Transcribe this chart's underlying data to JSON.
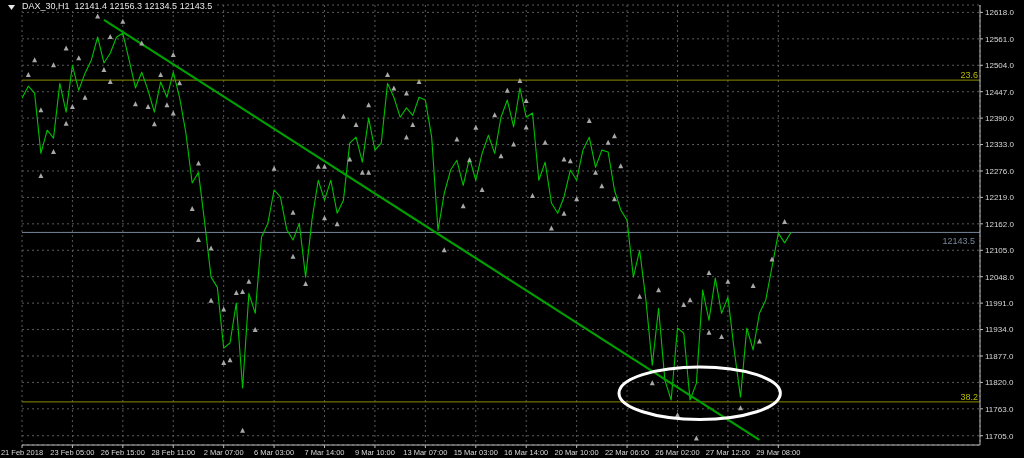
{
  "chart_data": {
    "type": "line",
    "title": "DAX_30,H1  12141.4 12156.3 12134.5 12143.5",
    "categories": [
      "21 Feb 2018",
      null,
      null,
      null,
      null,
      null,
      null,
      null,
      "23 Feb 05:00",
      null,
      null,
      null,
      null,
      null,
      null,
      null,
      "26 Feb 15:00",
      null,
      null,
      null,
      null,
      null,
      null,
      null,
      "28 Feb 11:00",
      null,
      null,
      null,
      null,
      null,
      null,
      null,
      "2 Mar 07:00",
      null,
      null,
      null,
      null,
      null,
      null,
      null,
      "6 Mar 03:00",
      null,
      null,
      null,
      null,
      null,
      null,
      null,
      "7 Mar 14:00",
      null,
      null,
      null,
      null,
      null,
      null,
      null,
      "9 Mar 10:00",
      null,
      null,
      null,
      null,
      null,
      null,
      null,
      "13 Mar 07:00",
      null,
      null,
      null,
      null,
      null,
      null,
      null,
      "15 Mar 03:00",
      null,
      null,
      null,
      null,
      null,
      null,
      null,
      "16 Mar 14:00",
      null,
      null,
      null,
      null,
      null,
      null,
      null,
      "20 Mar 10:00",
      null,
      null,
      null,
      null,
      null,
      null,
      null,
      "22 Mar 06:00",
      null,
      null,
      null,
      null,
      null,
      null,
      null,
      "26 Mar 02:00",
      null,
      null,
      null,
      null,
      null,
      null,
      null,
      "27 Mar 12:00",
      null,
      null,
      null,
      null,
      null,
      null,
      null,
      "29 Mar 08:00",
      null,
      null,
      null,
      null,
      null,
      null,
      null,
      null,
      null,
      null,
      null,
      null,
      null,
      null,
      null,
      null,
      null,
      null,
      null,
      null,
      null,
      null,
      null,
      null,
      null,
      null,
      null,
      null,
      null,
      null,
      null,
      null
    ],
    "series": [
      {
        "type": "line",
        "color": "#00c000",
        "values": [
          12433,
          12459,
          12444,
          12314,
          12364,
          12347,
          12465,
          12403,
          12504,
          12450,
          12487,
          12515,
          12565,
          12509,
          12530,
          12565,
          12573,
          12515,
          12455,
          12489,
          12450,
          12403,
          12468,
          12435,
          12489,
          12435,
          12358,
          12250,
          12273,
          12163,
          12047,
          12025,
          11894,
          11905,
          11991,
          11808,
          12012,
          11969,
          12133,
          12163,
          12235,
          12220,
          12150,
          12127,
          12163,
          12047,
          12170,
          12256,
          12213,
          12256,
          12185,
          12213,
          12336,
          12349,
          12295,
          12390,
          12321,
          12336,
          12465,
          12435,
          12392,
          12412,
          12396,
          12435,
          12429,
          12349,
          12148,
          12228,
          12278,
          12299,
          12245,
          12304,
          12256,
          12314,
          12353,
          12314,
          12392,
          12429,
          12371,
          12455,
          12392,
          12401,
          12256,
          12295,
          12207,
          12185,
          12220,
          12278,
          12256,
          12321,
          12349,
          12284,
          12321,
          12317,
          12235,
          12192,
          12170,
          12047,
          12105,
          11997,
          11857,
          11980,
          11825,
          11782,
          11937,
          11926,
          11782,
          11818,
          12019,
          11954,
          12045,
          11969,
          12004,
          11890,
          11788,
          11937,
          11890,
          11969,
          11997,
          12069,
          12142,
          12121,
          12143.5,
          null,
          null,
          null,
          null,
          null,
          null,
          null,
          null,
          null,
          null,
          null,
          null,
          null,
          null,
          null,
          null,
          null,
          null,
          null,
          null,
          null,
          null,
          null,
          null,
          null,
          null,
          null,
          null,
          null,
          null
        ]
      },
      {
        "type": "line",
        "color": "#00a000",
        "values": [
          null,
          null,
          null,
          null,
          null,
          null,
          null,
          null,
          null,
          null,
          null,
          null,
          null,
          12602,
          null,
          null,
          null,
          null,
          null,
          null,
          null,
          null,
          null,
          null,
          null,
          null,
          null,
          null,
          null,
          null,
          null,
          null,
          null,
          null,
          null,
          null,
          null,
          null,
          null,
          null,
          null,
          null,
          null,
          null,
          null,
          null,
          null,
          null,
          null,
          null,
          null,
          null,
          null,
          null,
          null,
          null,
          null,
          null,
          null,
          null,
          null,
          null,
          null,
          null,
          null,
          null,
          null,
          null,
          null,
          null,
          null,
          null,
          null,
          null,
          null,
          null,
          null,
          null,
          null,
          null,
          null,
          null,
          null,
          null,
          null,
          null,
          null,
          null,
          null,
          null,
          null,
          null,
          null,
          null,
          null,
          null,
          null,
          null,
          null,
          null,
          null,
          null,
          null,
          null,
          null,
          null,
          null,
          null,
          null,
          null,
          null,
          null,
          null,
          null,
          null,
          null,
          null,
          11696,
          null,
          null,
          null,
          null,
          null,
          null,
          null,
          null,
          null,
          null,
          null,
          null,
          null,
          null,
          null,
          null,
          null,
          null,
          null,
          null,
          null,
          null,
          null,
          null,
          null,
          null,
          null,
          null,
          null,
          null,
          null,
          null,
          null,
          null,
          null
        ]
      },
      {
        "type": "scatter",
        "color": "#a8a8a8",
        "marker": "triangle",
        "values": [
          null,
          12483,
          12515,
          12407,
          null,
          12504,
          null,
          12540,
          null,
          12519,
          null,
          null,
          12609,
          null,
          12565,
          null,
          12598,
          null,
          null,
          12551,
          null,
          null,
          12483,
          null,
          12526,
          12465,
          null,
          null,
          12292,
          null,
          12109,
          null,
          11977,
          null,
          12013,
          12015,
          12037,
          null,
          null,
          null,
          12281,
          null,
          null,
          12186,
          null,
          null,
          null,
          12285,
          12285,
          null,
          null,
          12393,
          null,
          12375,
          null,
          12418,
          null,
          null,
          12483,
          12454,
          null,
          12443,
          null,
          12468,
          null,
          null,
          null,
          null,
          null,
          12344,
          null,
          12299,
          12369,
          null,
          null,
          12396,
          null,
          12449,
          null,
          12470,
          12427,
          null,
          null,
          12337,
          null,
          null,
          12301,
          12297,
          null,
          null,
          12384,
          null,
          null,
          12337,
          12351,
          12286,
          null,
          null,
          null,
          null,
          null,
          12019,
          null,
          null,
          null,
          11987,
          11997,
          null,
          null,
          12056,
          null,
          null,
          12037,
          null,
          null,
          null,
          12028,
          null,
          null,
          12085,
          null,
          12166,
          null,
          null,
          null,
          null,
          null,
          null,
          null,
          null,
          null,
          null,
          null,
          null,
          null,
          null,
          null,
          null,
          null,
          null,
          null,
          null,
          null,
          null,
          null,
          null,
          null,
          null,
          null,
          null,
          null,
          null,
          null
        ]
      },
      {
        "type": "scatter",
        "color": "#a8a8a8",
        "marker": "triangle",
        "values": [
          null,
          null,
          null,
          12265,
          null,
          12317,
          null,
          12378,
          12414,
          null,
          12434,
          null,
          null,
          12494,
          12468,
          null,
          null,
          null,
          12420,
          null,
          12414,
          12377,
          null,
          12418,
          12400,
          null,
          null,
          12194,
          12127,
          null,
          11996,
          null,
          11862,
          11868,
          null,
          11716,
          null,
          11933,
          null,
          null,
          null,
          null,
          null,
          12091,
          null,
          12032,
          null,
          null,
          12174,
          null,
          12161,
          null,
          12301,
          null,
          12272,
          12272,
          null,
          null,
          null,
          null,
          null,
          12348,
          12375,
          null,
          null,
          null,
          null,
          12105,
          null,
          null,
          12200,
          null,
          null,
          12235,
          null,
          null,
          12308,
          null,
          12333,
          null,
          12370,
          12222,
          null,
          null,
          12152,
          null,
          12184,
          null,
          12215,
          null,
          null,
          12272,
          12243,
          null,
          12215,
          null,
          null,
          null,
          12005,
          null,
          11818,
          null,
          null,
          null,
          11749,
          null,
          null,
          11699,
          null,
          11927,
          null,
          11918,
          null,
          null,
          11764,
          null,
          null,
          11908,
          null,
          null,
          null,
          null,
          null,
          null,
          null,
          null,
          null,
          null,
          null,
          null,
          null,
          null,
          null,
          null,
          null,
          null,
          null,
          null,
          null,
          null,
          null,
          null,
          null,
          null,
          null,
          null,
          null,
          null,
          null,
          null,
          null,
          null,
          null
        ]
      }
    ],
    "ylim": [
      11685,
      12634
    ],
    "yticks": [
      {
        "value": 12618,
        "label": "12618.0"
      },
      {
        "value": 12561,
        "label": "12561.0"
      },
      {
        "value": 12504,
        "label": "12504.0"
      },
      {
        "value": 12447,
        "label": "12447.0"
      },
      {
        "value": 12390,
        "label": "12390.0"
      },
      {
        "value": 12333,
        "label": "12333.0"
      },
      {
        "value": 12276,
        "label": "12276.0"
      },
      {
        "value": 12219,
        "label": "12219.0"
      },
      {
        "value": 12162,
        "label": "12162.0"
      },
      {
        "value": 12105,
        "label": "12105.0"
      },
      {
        "value": 12048,
        "label": "12048.0"
      },
      {
        "value": 11991,
        "label": "11991.0"
      },
      {
        "value": 11934,
        "label": "11934.0"
      },
      {
        "value": 11877,
        "label": "11877.0"
      },
      {
        "value": 11820,
        "label": "11820.0"
      },
      {
        "value": 11763,
        "label": "11763.0"
      },
      {
        "value": 11705,
        "label": "11705.0"
      }
    ],
    "ref_lines": [
      {
        "axis": "y",
        "value": 12472,
        "color": "#8b8b00"
      },
      {
        "axis": "y",
        "value": 11778,
        "color": "#8b8b00"
      },
      {
        "axis": "y",
        "value": 12143.5,
        "label": "12143.5",
        "color": "#778899"
      }
    ],
    "annotations": [
      {
        "text": "23.6",
        "y": 12472
      },
      {
        "text": "38.2",
        "y": 11778
      }
    ],
    "grid": true,
    "legend": false
  }
}
